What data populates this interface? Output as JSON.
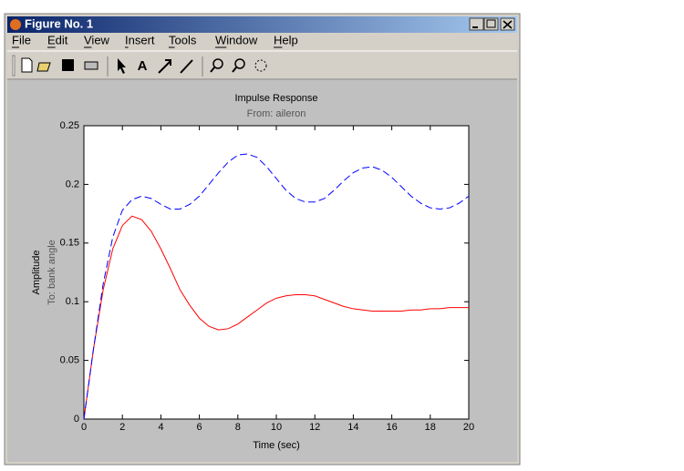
{
  "window": {
    "title": "Figure No. 1",
    "menu": [
      "File",
      "Edit",
      "View",
      "Insert",
      "Tools",
      "Window",
      "Help"
    ]
  },
  "chart_data": {
    "type": "line",
    "title": "Impulse Response",
    "subtitle": "From: aileron",
    "xlabel": "Time (sec)",
    "ylabel": "Amplitude",
    "output_label": "To: bank angle",
    "x": [
      0,
      0.5,
      1,
      1.5,
      2,
      2.5,
      3,
      3.5,
      4,
      4.5,
      5,
      5.5,
      6,
      6.5,
      7,
      7.5,
      8,
      8.5,
      9,
      9.5,
      10,
      10.5,
      11,
      11.5,
      12,
      12.5,
      13,
      13.5,
      14,
      14.5,
      15,
      15.5,
      16,
      16.5,
      17,
      17.5,
      18,
      18.5,
      19,
      19.5,
      20
    ],
    "series": [
      {
        "color": "#ff0000",
        "linestyle": "solid",
        "values": [
          0,
          0.06,
          0.11,
          0.145,
          0.165,
          0.173,
          0.17,
          0.16,
          0.145,
          0.128,
          0.11,
          0.097,
          0.086,
          0.079,
          0.076,
          0.077,
          0.081,
          0.087,
          0.093,
          0.099,
          0.103,
          0.105,
          0.106,
          0.106,
          0.105,
          0.102,
          0.099,
          0.096,
          0.094,
          0.093,
          0.092,
          0.092,
          0.092,
          0.092,
          0.093,
          0.093,
          0.094,
          0.094,
          0.095,
          0.095,
          0.095
        ]
      },
      {
        "color": "#0000ff",
        "linestyle": "dashed",
        "values": [
          0,
          0.06,
          0.115,
          0.155,
          0.178,
          0.187,
          0.19,
          0.188,
          0.183,
          0.179,
          0.179,
          0.183,
          0.19,
          0.2,
          0.21,
          0.219,
          0.225,
          0.226,
          0.223,
          0.215,
          0.205,
          0.195,
          0.188,
          0.185,
          0.185,
          0.188,
          0.195,
          0.203,
          0.21,
          0.214,
          0.215,
          0.212,
          0.206,
          0.198,
          0.19,
          0.184,
          0.18,
          0.179,
          0.18,
          0.184,
          0.19
        ]
      }
    ],
    "xlim": [
      0,
      20
    ],
    "xticks": [
      0,
      2,
      4,
      6,
      8,
      10,
      12,
      14,
      16,
      18,
      20
    ],
    "ylim": [
      0,
      0.25
    ],
    "yticks": [
      0,
      0.05,
      0.1,
      0.15,
      0.2,
      0.25
    ],
    "grid": false
  }
}
